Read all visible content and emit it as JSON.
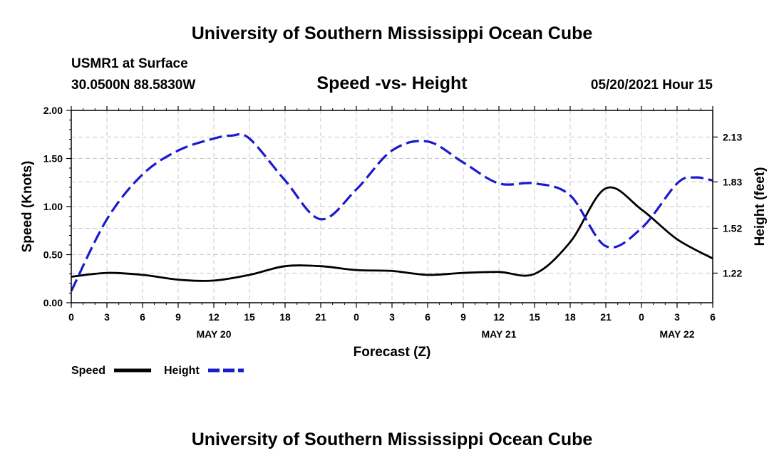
{
  "page": {
    "title_top": "University of Southern Mississippi Ocean Cube",
    "title_bottom": "University of Southern Mississippi Ocean Cube",
    "station": "USMR1 at Surface",
    "coords": "30.0500N  88.5830W",
    "chart_title": "Speed -vs- Height",
    "timestamp": "05/20/2021 Hour 15"
  },
  "chart_data": {
    "type": "line",
    "title": "Speed -vs- Height",
    "xlabel": "Forecast (Z)",
    "ylabel_left": "Speed (Knots)",
    "ylabel_right": "Height (feet)",
    "x_unit": "forecast hours from 0Z May 20",
    "xlim": [
      0,
      54
    ],
    "ylim_left": [
      0,
      2.0
    ],
    "ylim_right": [
      1.022,
      2.308
    ],
    "y_ticks_left": [
      "0.00",
      "0.50",
      "1.00",
      "1.50",
      "2.00"
    ],
    "y_ticks_left_values": [
      0,
      0.5,
      1.0,
      1.5,
      2.0
    ],
    "y_ticks_right": [
      "1.22",
      "1.52",
      "1.83",
      "2.13"
    ],
    "y_ticks_right_values": [
      1.22,
      1.52,
      1.83,
      2.13
    ],
    "x_ticks": [
      "0",
      "3",
      "6",
      "9",
      "12",
      "15",
      "18",
      "21",
      "0",
      "3",
      "6",
      "9",
      "12",
      "15",
      "18",
      "21",
      "0",
      "3",
      "6"
    ],
    "day_labels": [
      {
        "label": "MAY 20",
        "x": 12
      },
      {
        "label": "MAY 21",
        "x": 36
      },
      {
        "label": "MAY 22",
        "x": 51
      }
    ],
    "grid": true,
    "legend_position": "bottom-left",
    "series": [
      {
        "name": "Speed",
        "axis": "left",
        "color": "#000000",
        "style": "solid",
        "x": [
          0,
          3,
          6,
          9,
          12,
          15,
          18,
          21,
          24,
          27,
          30,
          33,
          36,
          39,
          42,
          45,
          48,
          51,
          54
        ],
        "values": [
          0.27,
          0.31,
          0.29,
          0.24,
          0.23,
          0.29,
          0.38,
          0.38,
          0.34,
          0.33,
          0.29,
          0.31,
          0.32,
          0.3,
          0.63,
          1.19,
          0.97,
          0.66,
          0.46
        ]
      },
      {
        "name": "Height",
        "axis": "right",
        "color": "#1a1acc",
        "style": "dashed",
        "x": [
          0,
          3,
          6,
          9,
          12,
          13.5,
          15,
          18,
          21,
          24,
          27,
          30,
          33,
          36,
          39,
          42,
          45,
          48,
          51,
          52.5,
          54
        ],
        "values": [
          1.1,
          1.58,
          1.88,
          2.04,
          2.12,
          2.14,
          2.12,
          1.84,
          1.58,
          1.78,
          2.04,
          2.1,
          1.96,
          1.82,
          1.82,
          1.74,
          1.4,
          1.52,
          1.82,
          1.86,
          1.84
        ]
      }
    ]
  }
}
